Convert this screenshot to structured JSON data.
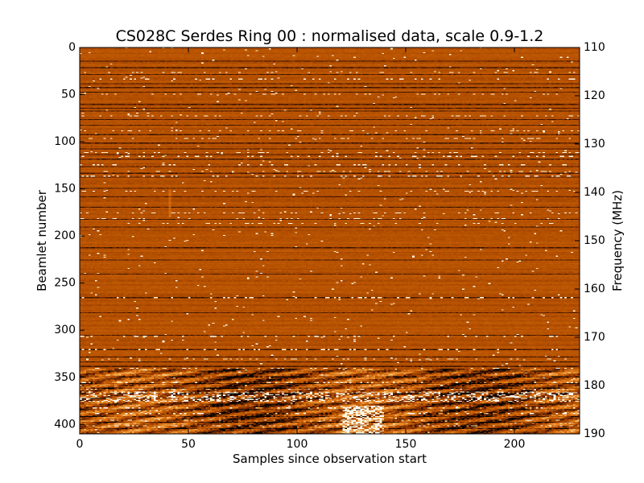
{
  "chart_data": {
    "type": "heatmap",
    "title": "CS028C Serdes Ring 00 : normalised data, scale 0.9-1.2",
    "xlabel": "Samples since observation start",
    "ylabel": "Beamlet number",
    "y2label": "Frequency (MHz)",
    "xlim": [
      0,
      230
    ],
    "ylim": [
      410,
      0
    ],
    "y2lim": [
      110,
      190
    ],
    "xticks": [
      "0",
      "50",
      "100",
      "150",
      "200"
    ],
    "yticks": [
      "0",
      "50",
      "100",
      "150",
      "200",
      "250",
      "300",
      "350",
      "400"
    ],
    "y2ticks": [
      "110",
      "120",
      "130",
      "140",
      "150",
      "160",
      "170",
      "180",
      "190"
    ],
    "color_scale": [
      0.9,
      1.2
    ],
    "colormap": [
      "#000000",
      "#7a2a00",
      "#b45000",
      "#d86e10",
      "#f0a040",
      "#fff0c0",
      "#ffffff"
    ],
    "grid": false,
    "dark_rows": [
      14,
      21,
      28,
      38,
      42,
      47,
      60,
      64,
      67,
      76,
      82,
      92,
      101,
      107,
      113,
      118,
      126,
      133,
      137,
      149,
      158,
      169,
      182,
      190,
      212,
      225,
      240,
      265,
      281,
      305,
      320,
      328,
      333,
      338,
      343,
      349,
      356,
      361,
      367,
      372,
      378,
      384,
      391,
      397,
      404
    ],
    "bright_rows": [
      26,
      33,
      49,
      72,
      88,
      96,
      111,
      115,
      124,
      131,
      136,
      152,
      175,
      181,
      186,
      265,
      306,
      320,
      330,
      340,
      355,
      362,
      366,
      371,
      375,
      382,
      388,
      395,
      401
    ]
  }
}
